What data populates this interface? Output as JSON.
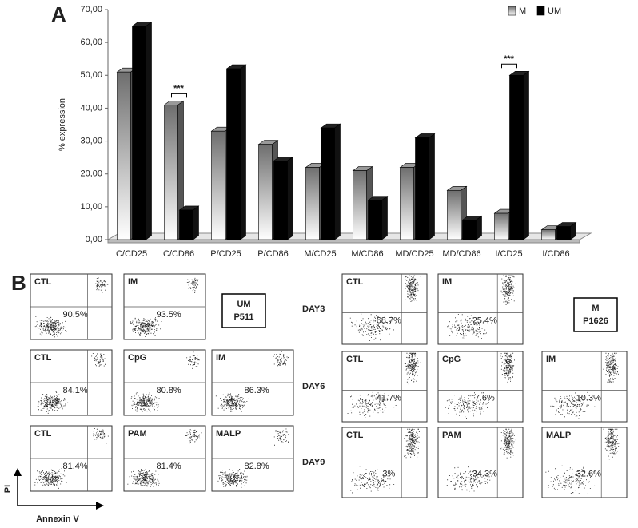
{
  "chart_data": {
    "type": "bar3d",
    "y_label": "% expression",
    "categories": [
      "C/CD25",
      "C/CD86",
      "P/CD25",
      "P/CD86",
      "M/CD25",
      "M/CD86",
      "MD/CD25",
      "MD/CD86",
      "I/CD25",
      "I/CD86"
    ],
    "series": [
      {
        "name": "M",
        "color": "#777777",
        "values": [
          51,
          41,
          33,
          29,
          22,
          21,
          22,
          15,
          8,
          3
        ]
      },
      {
        "name": "UM",
        "color": "#000000",
        "values": [
          65,
          9,
          52,
          24,
          34,
          12,
          31,
          6,
          50,
          4
        ]
      }
    ],
    "ylim": [
      0,
      70
    ],
    "yticks": [
      {
        "value": 0,
        "label": "0,00"
      },
      {
        "value": 10,
        "label": "10,00"
      },
      {
        "value": 20,
        "label": "20,00"
      },
      {
        "value": 30,
        "label": "30,00"
      },
      {
        "value": 40,
        "label": "40,00"
      },
      {
        "value": 50,
        "label": "50,00"
      },
      {
        "value": 60,
        "label": "60,00"
      },
      {
        "value": 70,
        "label": "70,00"
      }
    ],
    "annotations": [
      {
        "text": "***",
        "category": 1
      },
      {
        "text": "***",
        "category": 8
      }
    ],
    "legend": "top-right"
  },
  "panel_labels": [
    "A",
    "B"
  ],
  "flow_axes": {
    "y": "PI",
    "x": "Annexin V"
  },
  "flow_left": {
    "sample": [
      "UM",
      "P511"
    ],
    "rows": [
      [
        {
          "label": "CTL",
          "pct": "90.5%"
        },
        {
          "label": "IM",
          "pct": "93.5%"
        }
      ],
      [
        {
          "label": "CTL",
          "pct": "84.1%"
        },
        {
          "label": "CpG",
          "pct": "80.8%"
        },
        {
          "label": "IM",
          "pct": "86.3%"
        }
      ],
      [
        {
          "label": "CTL",
          "pct": "81.4%"
        },
        {
          "label": "PAM",
          "pct": "81.4%"
        },
        {
          "label": "MALP",
          "pct": "82.8%"
        }
      ]
    ]
  },
  "flow_right": {
    "sample": [
      "M",
      "P1626"
    ],
    "days": [
      "DAY3",
      "DAY6",
      "DAY9"
    ],
    "rows": [
      [
        {
          "label": "CTL",
          "pct": "68.7%"
        },
        {
          "label": "IM",
          "pct": "25.4%"
        }
      ],
      [
        {
          "label": "CTL",
          "pct": "41.7%"
        },
        {
          "label": "CpG",
          "pct": "7.6%"
        },
        {
          "label": "IM",
          "pct": "10.3%"
        }
      ],
      [
        {
          "label": "CTL",
          "pct": "3%"
        },
        {
          "label": "PAM",
          "pct": "34.3%"
        },
        {
          "label": "MALP",
          "pct": "32.6%"
        }
      ]
    ]
  }
}
